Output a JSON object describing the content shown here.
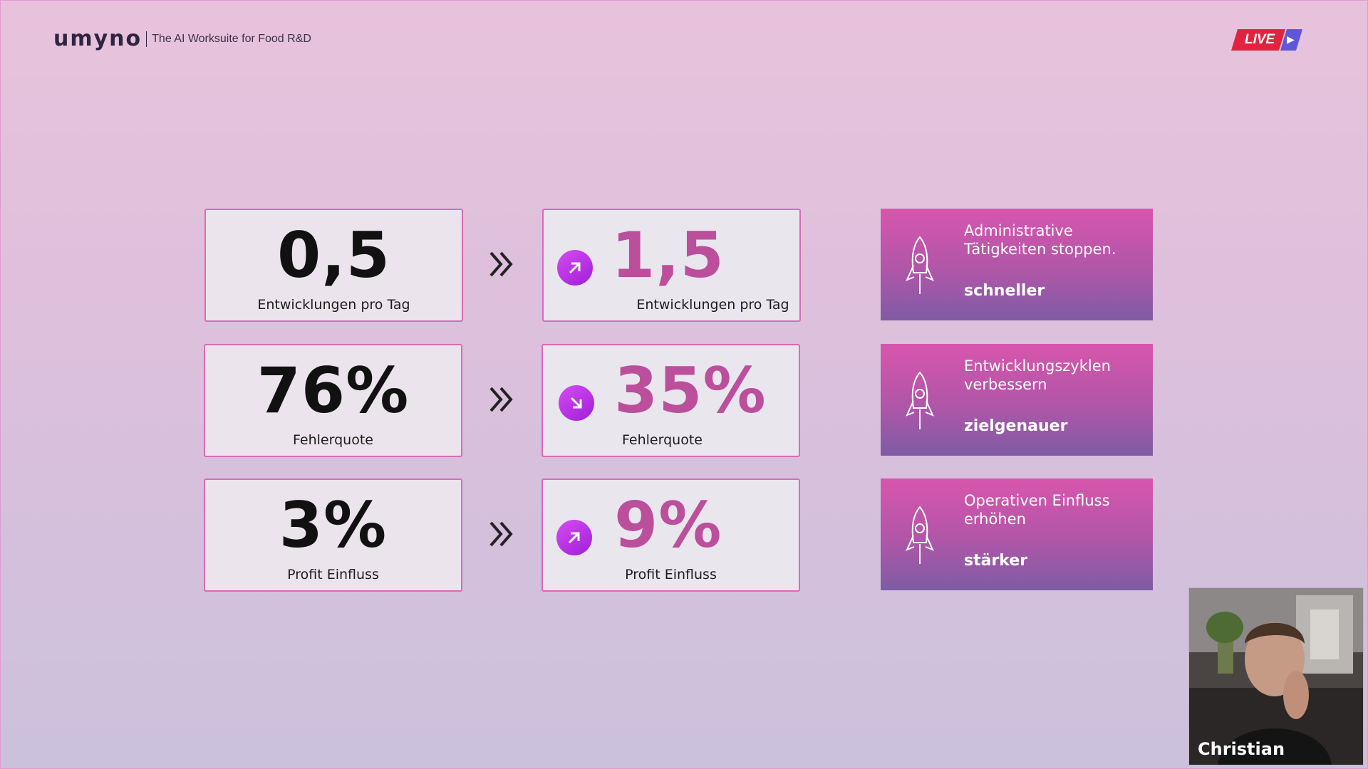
{
  "header": {
    "logo_text": "umyno",
    "tagline": "The AI Worksuite for Food R&D",
    "live_label": "LIVE",
    "live_play_icon": "play-icon"
  },
  "rows": [
    {
      "before": {
        "value": "0,5",
        "label": "Entwicklungen pro Tag"
      },
      "after": {
        "value": "1,5",
        "label": "Entwicklungen pro Tag",
        "trend": "up"
      },
      "card": {
        "title": "Administrative Tätigkeiten stoppen.",
        "tag": "schneller"
      }
    },
    {
      "before": {
        "value": "76%",
        "label": "Fehlerquote"
      },
      "after": {
        "value": "35%",
        "label": "Fehlerquote",
        "trend": "down"
      },
      "card": {
        "title": "Entwicklungszyklen verbessern",
        "tag": "zielgenauer"
      }
    },
    {
      "before": {
        "value": "3%",
        "label": "Profit Einfluss"
      },
      "after": {
        "value": "9%",
        "label": "Profit Einfluss",
        "trend": "up"
      },
      "card": {
        "title": "Operativen Einfluss erhöhen",
        "tag": "stärker"
      }
    }
  ],
  "video": {
    "participant_name": "Christian"
  },
  "colors": {
    "accent": "#bb4f9c",
    "badge": "#b52ae2",
    "card_top": "#d856ad",
    "card_bottom": "#7e5ca4",
    "live_red": "#e02440",
    "live_blue": "#5e57d8"
  }
}
